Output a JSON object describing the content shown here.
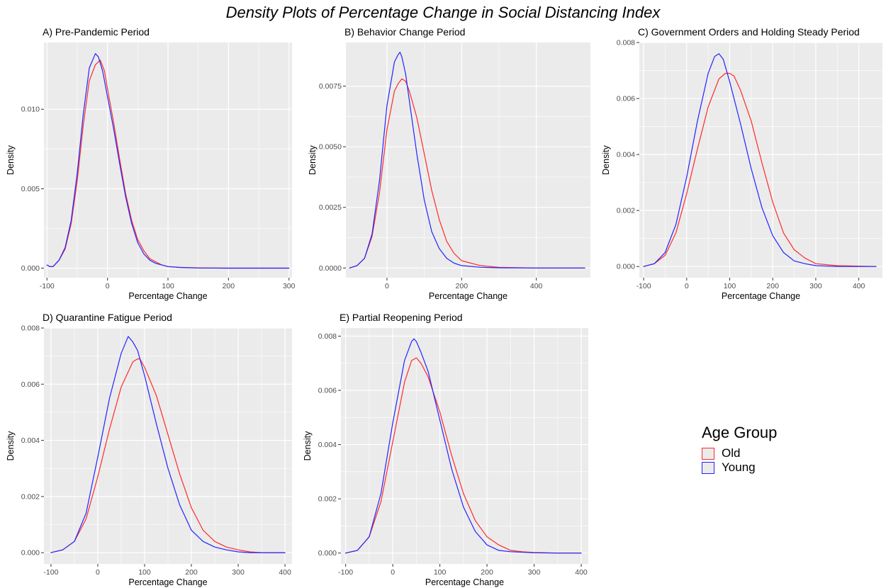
{
  "title": "Density Plots of Percentage Change in Social Distancing Index",
  "legend": {
    "title": "Age Group",
    "items": [
      {
        "label": "Old",
        "color": "#ff2a2a"
      },
      {
        "label": "Young",
        "color": "#2323ff"
      }
    ]
  },
  "chart_data": [
    {
      "type": "line",
      "title": "A) Pre-Pandemic Period",
      "xlabel": "Percentage Change",
      "ylabel": "Density",
      "xlim": [
        -105,
        305
      ],
      "ylim": [
        -0.0006,
        0.0142
      ],
      "xticks": [
        -100,
        0,
        100,
        200,
        300
      ],
      "yticks": [
        0.0,
        0.005,
        0.01
      ],
      "ytick_labels": [
        "0.000",
        "0.005",
        "0.010"
      ],
      "grid": true,
      "series": [
        {
          "name": "Old",
          "color": "#ff2a2a",
          "x": [
            -100,
            -95,
            -90,
            -80,
            -70,
            -60,
            -50,
            -40,
            -30,
            -20,
            -12,
            -5,
            0,
            10,
            20,
            30,
            40,
            50,
            60,
            70,
            80,
            90,
            100,
            120,
            150,
            200,
            300
          ],
          "y": [
            0.0002,
            0.0001,
            0.0001,
            0.0005,
            0.0012,
            0.0028,
            0.0055,
            0.009,
            0.0118,
            0.0128,
            0.0131,
            0.0124,
            0.0113,
            0.0092,
            0.0069,
            0.0047,
            0.003,
            0.0018,
            0.0011,
            0.0006,
            0.0004,
            0.0002,
            0.0001,
            5e-05,
            2e-05,
            0.0,
            0.0
          ]
        },
        {
          "name": "Young",
          "color": "#2323ff",
          "x": [
            -100,
            -95,
            -90,
            -80,
            -70,
            -60,
            -50,
            -40,
            -30,
            -20,
            -15,
            -8,
            0,
            10,
            20,
            30,
            40,
            50,
            60,
            70,
            80,
            90,
            100,
            120,
            150,
            200,
            300
          ],
          "y": [
            0.0002,
            0.0001,
            0.0001,
            0.0005,
            0.0013,
            0.003,
            0.006,
            0.0097,
            0.0126,
            0.0135,
            0.0133,
            0.0124,
            0.0108,
            0.0088,
            0.0066,
            0.0045,
            0.0028,
            0.0016,
            0.0009,
            0.0005,
            0.0003,
            0.0002,
            0.0001,
            4e-05,
            1e-05,
            0.0,
            0.0
          ]
        }
      ]
    },
    {
      "type": "line",
      "title": "B) Behavior Change Period",
      "xlabel": "Percentage Change",
      "ylabel": "Density",
      "xlim": [
        -110,
        545
      ],
      "ylim": [
        -0.0004,
        0.0093
      ],
      "xticks": [
        0,
        200,
        400
      ],
      "yticks": [
        0.0,
        0.0025,
        0.005,
        0.0075
      ],
      "ytick_labels": [
        "0.0000",
        "0.0025",
        "0.0050",
        "0.0075"
      ],
      "grid": true,
      "series": [
        {
          "name": "Old",
          "color": "#ff2a2a",
          "x": [
            -100,
            -80,
            -60,
            -40,
            -20,
            0,
            20,
            30,
            40,
            50,
            60,
            80,
            100,
            120,
            140,
            160,
            180,
            200,
            250,
            300,
            400,
            530
          ],
          "y": [
            0.0,
            0.0001,
            0.0004,
            0.0013,
            0.0031,
            0.0057,
            0.0073,
            0.0076,
            0.0078,
            0.0077,
            0.0073,
            0.0062,
            0.0047,
            0.0032,
            0.002,
            0.0011,
            0.0006,
            0.0003,
            0.0001,
            3e-05,
            0.0,
            0.0
          ]
        },
        {
          "name": "Young",
          "color": "#2323ff",
          "x": [
            -100,
            -80,
            -60,
            -40,
            -20,
            0,
            20,
            30,
            35,
            40,
            50,
            60,
            80,
            100,
            120,
            140,
            160,
            180,
            200,
            250,
            300,
            400,
            530
          ],
          "y": [
            0.0,
            0.0001,
            0.0004,
            0.0014,
            0.0036,
            0.0067,
            0.0085,
            0.0088,
            0.0089,
            0.0087,
            0.008,
            0.0069,
            0.0047,
            0.0028,
            0.0015,
            0.0008,
            0.0004,
            0.0002,
            0.0001,
            3e-05,
            1e-05,
            0.0,
            0.0
          ]
        }
      ]
    },
    {
      "type": "line",
      "title": "C) Government Orders and Holding Steady Period",
      "xlabel": "Percentage Change",
      "ylabel": "Density",
      "xlim": [
        -110,
        455
      ],
      "ylim": [
        -0.0004,
        0.008
      ],
      "xticks": [
        -100,
        0,
        100,
        200,
        300,
        400
      ],
      "yticks": [
        0.0,
        0.002,
        0.004,
        0.006,
        0.008
      ],
      "ytick_labels": [
        "0.000",
        "0.002",
        "0.004",
        "0.006",
        "0.008"
      ],
      "grid": true,
      "series": [
        {
          "name": "Old",
          "color": "#ff2a2a",
          "x": [
            -100,
            -75,
            -50,
            -25,
            0,
            25,
            50,
            75,
            90,
            100,
            110,
            125,
            150,
            175,
            200,
            225,
            250,
            275,
            300,
            350,
            440
          ],
          "y": [
            0.0,
            0.0001,
            0.0004,
            0.0012,
            0.0026,
            0.0042,
            0.0057,
            0.0067,
            0.0069,
            0.0069,
            0.0068,
            0.0063,
            0.0052,
            0.0037,
            0.0023,
            0.0012,
            0.0006,
            0.0003,
            0.0001,
            3e-05,
            0.0
          ]
        },
        {
          "name": "Young",
          "color": "#2323ff",
          "x": [
            -100,
            -75,
            -50,
            -25,
            0,
            25,
            50,
            65,
            75,
            85,
            100,
            125,
            150,
            175,
            200,
            225,
            250,
            275,
            300,
            350,
            440
          ],
          "y": [
            0.0,
            0.0001,
            0.0005,
            0.0015,
            0.0032,
            0.0052,
            0.0069,
            0.0075,
            0.0076,
            0.0074,
            0.0066,
            0.0051,
            0.0035,
            0.0021,
            0.0011,
            0.0005,
            0.0002,
            0.0001,
            3e-05,
            0.0,
            0.0
          ]
        }
      ]
    },
    {
      "type": "line",
      "title": "D) Quarantine Fatigue Period",
      "xlabel": "Percentage Change",
      "ylabel": "Density",
      "xlim": [
        -115,
        415
      ],
      "ylim": [
        -0.0004,
        0.008
      ],
      "xticks": [
        -100,
        0,
        100,
        200,
        300,
        400
      ],
      "yticks": [
        0.0,
        0.002,
        0.004,
        0.006,
        0.008
      ],
      "ytick_labels": [
        "0.000",
        "0.002",
        "0.004",
        "0.006",
        "0.008"
      ],
      "grid": true,
      "series": [
        {
          "name": "Old",
          "color": "#ff2a2a",
          "x": [
            -100,
            -75,
            -50,
            -25,
            0,
            25,
            50,
            75,
            85,
            90,
            100,
            110,
            125,
            150,
            175,
            200,
            225,
            250,
            275,
            300,
            325,
            350,
            400
          ],
          "y": [
            0.0,
            0.0001,
            0.0004,
            0.0012,
            0.0027,
            0.0044,
            0.0059,
            0.0068,
            0.0069,
            0.0069,
            0.0066,
            0.0062,
            0.0056,
            0.0042,
            0.0028,
            0.0016,
            0.0008,
            0.0004,
            0.0002,
            0.0001,
            3e-05,
            0.0,
            0.0
          ]
        },
        {
          "name": "Young",
          "color": "#2323ff",
          "x": [
            -100,
            -75,
            -50,
            -25,
            0,
            25,
            50,
            60,
            65,
            75,
            85,
            100,
            125,
            150,
            175,
            200,
            225,
            250,
            275,
            300,
            325,
            350,
            400
          ],
          "y": [
            0.0,
            0.0001,
            0.0004,
            0.0014,
            0.0034,
            0.0055,
            0.0071,
            0.0075,
            0.0077,
            0.0075,
            0.0072,
            0.0063,
            0.0046,
            0.003,
            0.0017,
            0.0008,
            0.0004,
            0.0002,
            0.0001,
            3e-05,
            0.0,
            0.0,
            0.0
          ]
        }
      ]
    },
    {
      "type": "line",
      "title": "E) Partial Reopening Period",
      "xlabel": "Percentage Change",
      "ylabel": "Density",
      "xlim": [
        -110,
        415
      ],
      "ylim": [
        -0.0004,
        0.0083
      ],
      "xticks": [
        -100,
        0,
        100,
        200,
        300,
        400
      ],
      "yticks": [
        0.0,
        0.002,
        0.004,
        0.006,
        0.008
      ],
      "ytick_labels": [
        "0.000",
        "0.002",
        "0.004",
        "0.006",
        "0.008"
      ],
      "grid": true,
      "series": [
        {
          "name": "Old",
          "color": "#ff2a2a",
          "x": [
            -100,
            -75,
            -50,
            -25,
            0,
            25,
            40,
            50,
            60,
            75,
            100,
            125,
            150,
            175,
            200,
            225,
            250,
            275,
            300,
            350,
            400
          ],
          "y": [
            0.0,
            0.0001,
            0.0006,
            0.0019,
            0.0041,
            0.0063,
            0.0071,
            0.0072,
            0.007,
            0.0065,
            0.0052,
            0.0036,
            0.0022,
            0.0012,
            0.0006,
            0.0003,
            0.0001,
            5e-05,
            2e-05,
            0.0,
            0.0
          ]
        },
        {
          "name": "Young",
          "color": "#2323ff",
          "x": [
            -100,
            -75,
            -50,
            -25,
            0,
            25,
            40,
            45,
            50,
            60,
            75,
            100,
            125,
            150,
            175,
            200,
            225,
            250,
            300,
            350,
            400
          ],
          "y": [
            0.0,
            0.0001,
            0.0006,
            0.0022,
            0.0048,
            0.0071,
            0.0078,
            0.0079,
            0.0078,
            0.0074,
            0.0067,
            0.0049,
            0.0031,
            0.0017,
            0.0008,
            0.0003,
            0.0001,
            5e-05,
            1e-05,
            0.0,
            0.0
          ]
        }
      ]
    }
  ]
}
